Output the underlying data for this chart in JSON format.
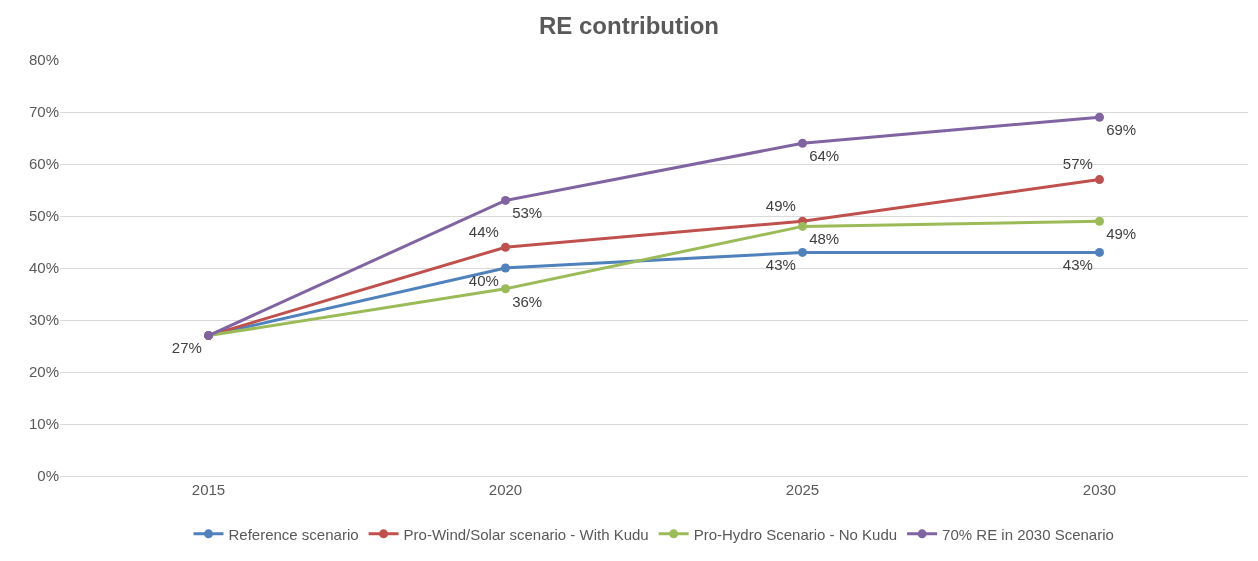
{
  "chart_data": {
    "type": "line",
    "title": "RE contribution",
    "categories": [
      "2015",
      "2020",
      "2025",
      "2030"
    ],
    "ylim": [
      0,
      80
    ],
    "yticks": [
      {
        "value": 0,
        "label": "0%"
      },
      {
        "value": 10,
        "label": "10%"
      },
      {
        "value": 20,
        "label": "20%"
      },
      {
        "value": 30,
        "label": "30%"
      },
      {
        "value": 40,
        "label": "40%"
      },
      {
        "value": 50,
        "label": "50%"
      },
      {
        "value": 60,
        "label": "60%"
      },
      {
        "value": 70,
        "label": "70%"
      },
      {
        "value": 80,
        "label": "80%"
      }
    ],
    "grid": "y",
    "legend": "bottom",
    "marker": "circle",
    "line_style": "solid",
    "series": [
      {
        "name": "Reference scenario",
        "color": "#4f81bd",
        "values": [
          27,
          40,
          43,
          43
        ],
        "value_labels": [
          "27%",
          "40%",
          "43%",
          "43%"
        ]
      },
      {
        "name": "Pro-Wind/Solar scenario - With Kudu",
        "color": "#c0504d",
        "values": [
          27,
          44,
          49,
          57
        ],
        "value_labels": [
          null,
          "44%",
          "49%",
          "57%"
        ]
      },
      {
        "name": "Pro-Hydro Scenario - No Kudu",
        "color": "#9bbb59",
        "values": [
          27,
          36,
          48,
          49
        ],
        "value_labels": [
          null,
          "36%",
          "48%",
          "49%"
        ]
      },
      {
        "name": "70% RE in 2030 Scenario",
        "color": "#8064a2",
        "values": [
          27,
          53,
          64,
          69
        ],
        "value_labels": [
          null,
          "53%",
          "64%",
          "69%"
        ]
      }
    ]
  }
}
